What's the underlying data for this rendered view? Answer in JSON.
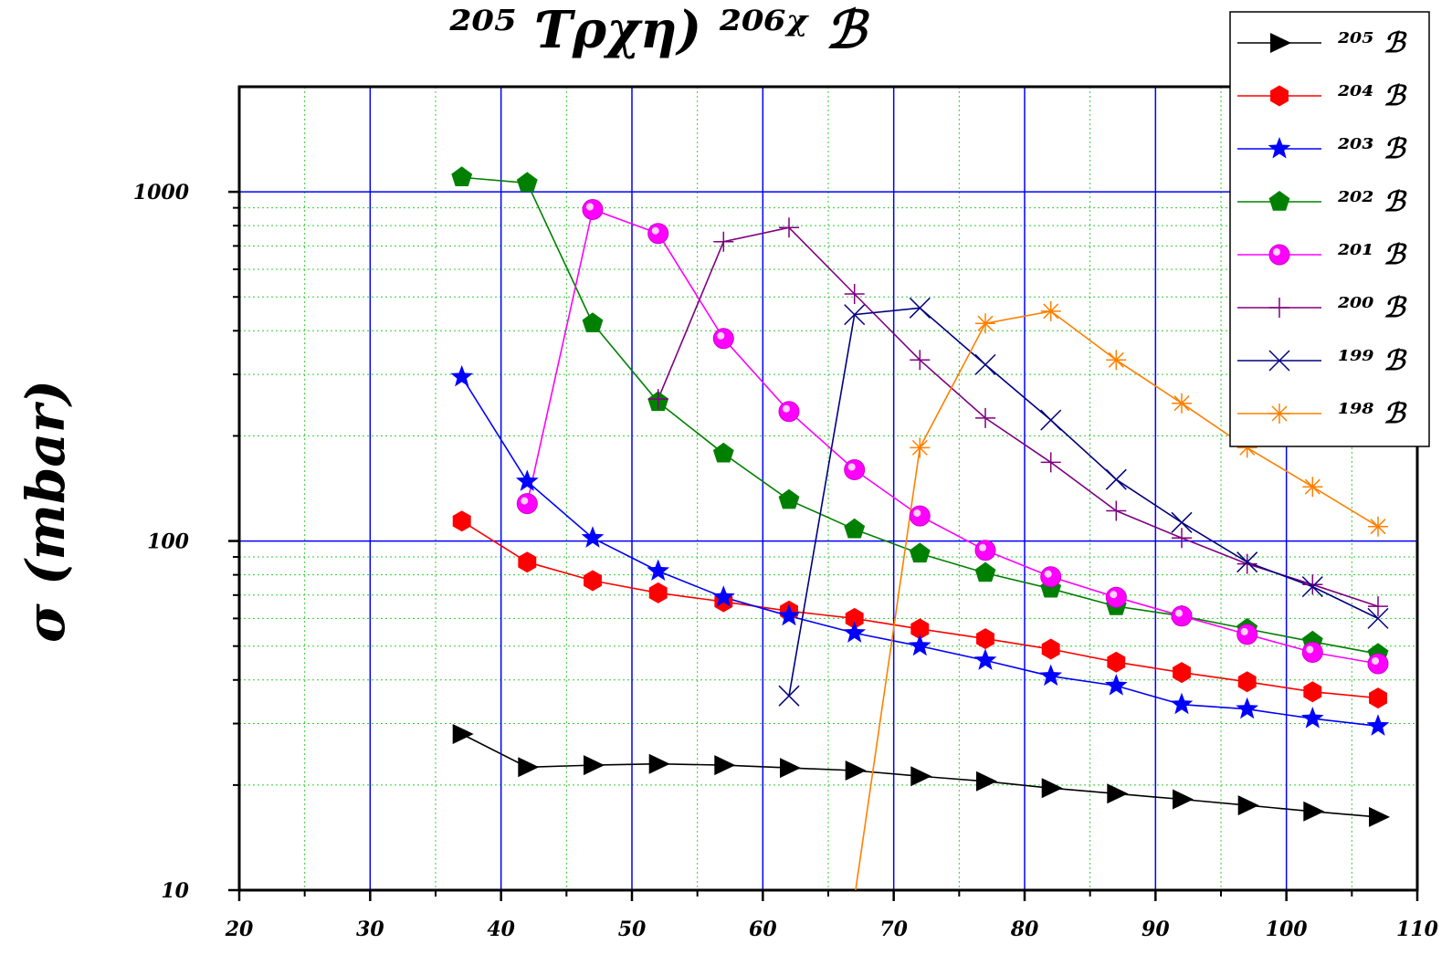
{
  "chart_data": {
    "type": "line",
    "title": "²⁰⁵ Ƭρχη) ²⁰⁶ᵡ ℬ",
    "xlabel": "",
    "ylabel": "σ (mbar)",
    "xlim": [
      20,
      110
    ],
    "ylim": [
      10,
      2000
    ],
    "yscale": "log",
    "grid": true,
    "legend_position": "top-right",
    "x_ticks": [
      20,
      30,
      40,
      50,
      60,
      70,
      80,
      90,
      100,
      110
    ],
    "x_tick_labels": [
      "20",
      "30",
      "40",
      "50",
      "60",
      "70",
      "80",
      "90",
      "100",
      "110"
    ],
    "y_ticks": [
      10,
      100,
      1000
    ],
    "y_tick_labels": [
      "10",
      "100",
      "1000"
    ],
    "series": [
      {
        "name": "²⁰⁵ ℬ",
        "color": "#000000",
        "marker": "triangle-right",
        "x": [
          37,
          42,
          47,
          52,
          57,
          62,
          67,
          72,
          77,
          82,
          87,
          92,
          97,
          102,
          107
        ],
        "y": [
          28,
          22.5,
          22.8,
          23,
          22.8,
          22.4,
          22,
          21.2,
          20.5,
          19.6,
          18.9,
          18.2,
          17.5,
          16.8,
          16.2
        ]
      },
      {
        "name": "²⁰⁴ ℬ",
        "color": "#ff0000",
        "marker": "hexagon",
        "x": [
          37,
          42,
          47,
          52,
          57,
          62,
          67,
          72,
          77,
          82,
          87,
          92,
          97,
          102,
          107
        ],
        "y": [
          114,
          87,
          77,
          71,
          67,
          63,
          60,
          56,
          52.5,
          49,
          45,
          42,
          39.5,
          37,
          35.5
        ]
      },
      {
        "name": "²⁰³ ℬ",
        "color": "#0000ff",
        "marker": "star",
        "x": [
          37,
          42,
          47,
          52,
          57,
          62,
          67,
          72,
          77,
          82,
          87,
          92,
          97,
          102,
          107
        ],
        "y": [
          295,
          148,
          102,
          82,
          69,
          61,
          54.5,
          50,
          45.5,
          41,
          38.5,
          34,
          33,
          31,
          29.5
        ]
      },
      {
        "name": "²⁰² ℬ",
        "color": "#008000",
        "marker": "pentagon",
        "x": [
          37,
          42,
          47,
          52,
          57,
          62,
          67,
          72,
          77,
          82,
          87,
          92,
          97,
          102,
          107
        ],
        "y": [
          1100,
          1060,
          420,
          250,
          178,
          131,
          108,
          92,
          81,
          73,
          65,
          61,
          56,
          51.5,
          47.5
        ]
      },
      {
        "name": "²⁰¹ ℬ",
        "color": "#ff00ff",
        "marker": "circle",
        "x": [
          42,
          47,
          52,
          57,
          62,
          67,
          72,
          77,
          82,
          87,
          92,
          97,
          102,
          107
        ],
        "y": [
          128,
          890,
          760,
          380,
          235,
          160,
          118,
          94,
          79,
          69,
          61,
          54,
          48,
          44.5
        ]
      },
      {
        "name": "²⁰⁰ ℬ",
        "color": "#800080",
        "marker": "plus",
        "x": [
          52,
          57,
          62,
          67,
          72,
          77,
          82,
          87,
          92,
          97,
          102,
          107
        ],
        "y": [
          255,
          720,
          790,
          510,
          330,
          225,
          168,
          122,
          102,
          86,
          75,
          65
        ]
      },
      {
        "name": "¹⁹⁹ ℬ",
        "color": "#000080",
        "marker": "x",
        "x": [
          62,
          67,
          72,
          77,
          82,
          87,
          92,
          97,
          102,
          107
        ],
        "y": [
          36,
          445,
          465,
          320,
          222,
          150,
          113,
          87,
          74,
          60
        ]
      },
      {
        "name": "¹⁹⁸ ℬ",
        "color": "#ff8000",
        "marker": "asterisk",
        "x": [
          67,
          72,
          77,
          82,
          87,
          92,
          97,
          102,
          107
        ],
        "y": [
          9.5,
          185,
          420,
          455,
          330,
          248,
          185,
          143,
          110
        ]
      }
    ]
  }
}
